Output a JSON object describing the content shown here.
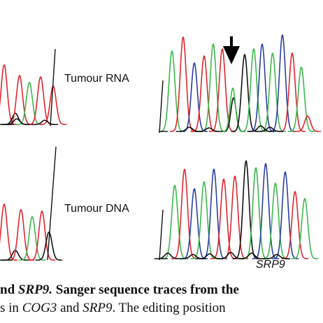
{
  "labels": {
    "tumour_rna": "Tumour RNA",
    "tumour_dna": "Tumour DNA",
    "gene": "SRP9"
  },
  "caption": {
    "line1_bold_prefix": "nd ",
    "line1_bold_gene": "SRP9.",
    "line1_rest": " Sanger sequence traces from the",
    "line2_prefix": "s in ",
    "line2_gene1": "COG3",
    "line2_mid": " and ",
    "line2_gene2": "SRP9",
    "line2_rest": ". The editing position"
  },
  "colors": {
    "A": "#3cb84a",
    "C": "#2b3ea0",
    "G": "#111111",
    "T": "#e0262e",
    "arrow": "#000000"
  }
}
